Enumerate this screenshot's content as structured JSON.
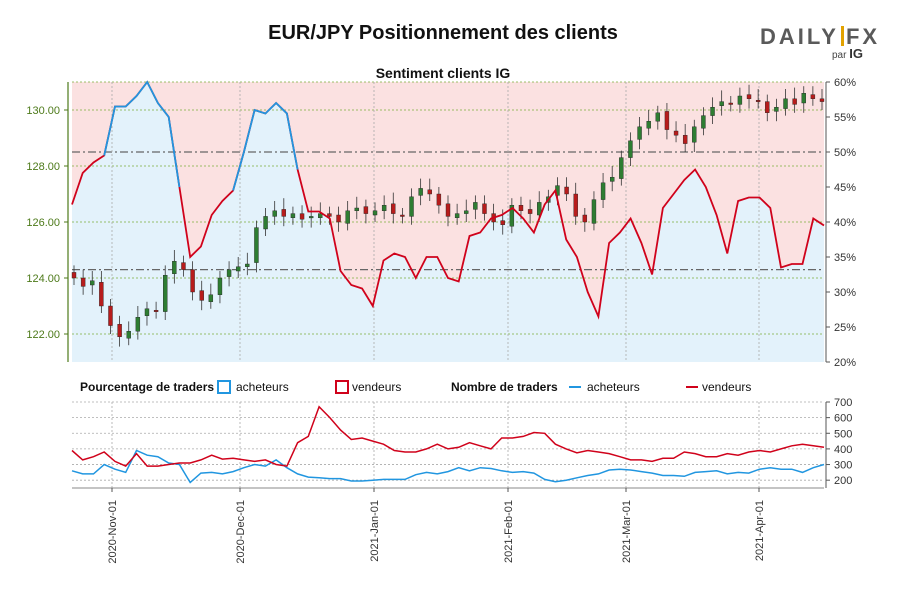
{
  "title": "EUR/JPY Positionnement des clients",
  "subtitle": "Sentiment clients IG",
  "logo": {
    "brand": "DAILYFX",
    "by": "par",
    "ig": "IG"
  },
  "legend": {
    "percent_title": "Pourcentage de traders",
    "count_title": "Nombre de traders",
    "buyers": "acheteurs",
    "sellers": "vendeurs"
  },
  "colors": {
    "buyers": "#2196e0",
    "sellers": "#d0021b",
    "buyers_fill": "#e3f2fb",
    "sellers_fill": "#fbe1e1",
    "candle_up": "#2e7d32",
    "candle_down": "#b71c1c",
    "price_axis": "#4d7a1a"
  },
  "chart_data": [
    {
      "type": "candlestick",
      "title": "Sentiment clients IG",
      "price_axis": {
        "ylim": [
          121.0,
          131.0
        ],
        "ticks": [
          "122.00",
          "124.00",
          "126.00",
          "128.00",
          "130.00"
        ]
      },
      "percent_axis": {
        "ylim": [
          20,
          60
        ],
        "ticks": [
          "20%",
          "25%",
          "30%",
          "35%",
          "40%",
          "45%",
          "50%",
          "55%",
          "60%"
        ]
      },
      "reference_lines": {
        "price": [
          128.5,
          124.3
        ]
      },
      "x_dates": [
        "2020-Nov-01",
        "2020-Dec-01",
        "2021-Jan-01",
        "2021-Feb-01",
        "2021-Mar-01",
        "2021-Apr-01"
      ],
      "n_days": 170,
      "price_close": [
        124.0,
        123.7,
        123.9,
        123.0,
        122.3,
        121.9,
        122.1,
        122.6,
        122.9,
        122.8,
        124.1,
        124.6,
        124.3,
        123.5,
        123.2,
        123.4,
        124.0,
        124.3,
        124.4,
        124.5,
        125.8,
        126.2,
        126.4,
        126.2,
        126.3,
        126.1,
        126.2,
        126.3,
        126.2,
        126.0,
        126.4,
        126.5,
        126.3,
        126.4,
        126.6,
        126.3,
        126.2,
        126.9,
        127.2,
        127.0,
        126.6,
        126.2,
        126.3,
        126.4,
        126.7,
        126.3,
        126.0,
        125.9,
        126.6,
        126.4,
        126.3,
        126.7,
        126.9,
        127.3,
        127.0,
        126.2,
        126.0,
        126.8,
        127.4,
        127.6,
        128.3,
        128.9,
        129.4,
        129.6,
        129.9,
        129.3,
        129.1,
        128.8,
        129.4,
        129.8,
        130.1,
        130.3,
        130.2,
        130.5,
        130.4,
        130.3,
        129.9,
        130.1,
        130.4,
        130.2,
        130.6,
        130.4,
        130.3
      ],
      "percent_buyers": [
        42.5,
        47.0,
        48.5,
        49.5,
        56.5,
        56.5,
        58.0,
        60.0,
        57.0,
        55.0,
        45.0,
        35.0,
        36.5,
        41.0,
        43.0,
        44.5,
        50.0,
        56.0,
        55.5,
        57.0,
        55.5,
        47.5,
        41.5,
        41.5,
        40.5,
        33.0,
        31.0,
        30.5,
        28.0,
        34.5,
        35.5,
        35.0,
        32.0,
        35.0,
        35.0,
        32.0,
        31.5,
        38.0,
        38.5,
        40.5,
        41.0,
        42.0,
        40.5,
        38.5,
        42.5,
        44.5,
        37.5,
        35.0,
        30.0,
        26.5,
        37.0,
        38.5,
        40.5,
        37.0,
        32.5,
        42.0,
        44.0,
        46.0,
        47.5,
        45.0,
        41.0,
        35.5,
        43.0,
        43.5,
        43.5,
        42.0,
        33.5,
        34.0,
        34.0,
        40.5,
        39.5
      ]
    },
    {
      "type": "line",
      "title": "Nombre de traders",
      "ylim": [
        150,
        700
      ],
      "ticks": [
        "200",
        "300",
        "400",
        "500",
        "600",
        "700"
      ],
      "series": [
        {
          "name": "acheteurs",
          "values": [
            260,
            240,
            240,
            300,
            270,
            250,
            390,
            360,
            350,
            310,
            300,
            185,
            245,
            250,
            240,
            255,
            280,
            300,
            290,
            330,
            280,
            240,
            220,
            215,
            210,
            210,
            195,
            195,
            200,
            205,
            205,
            205,
            235,
            250,
            240,
            255,
            280,
            260,
            280,
            275,
            260,
            250,
            255,
            245,
            205,
            190,
            200,
            215,
            230,
            240,
            265,
            270,
            265,
            255,
            245,
            230,
            230,
            225,
            250,
            255,
            260,
            240,
            250,
            245,
            270,
            280,
            270,
            270,
            250,
            280,
            300
          ]
        },
        {
          "name": "vendeurs",
          "values": [
            390,
            330,
            350,
            380,
            320,
            290,
            370,
            290,
            290,
            300,
            310,
            310,
            330,
            360,
            335,
            340,
            330,
            320,
            330,
            300,
            290,
            440,
            480,
            670,
            600,
            520,
            460,
            470,
            450,
            430,
            390,
            380,
            380,
            400,
            430,
            400,
            410,
            440,
            420,
            400,
            470,
            470,
            480,
            505,
            500,
            430,
            400,
            375,
            390,
            380,
            370,
            350,
            330,
            330,
            320,
            340,
            340,
            380,
            370,
            350,
            350,
            370,
            360,
            380,
            390,
            380,
            400,
            420,
            430,
            420,
            410
          ]
        }
      ]
    }
  ]
}
